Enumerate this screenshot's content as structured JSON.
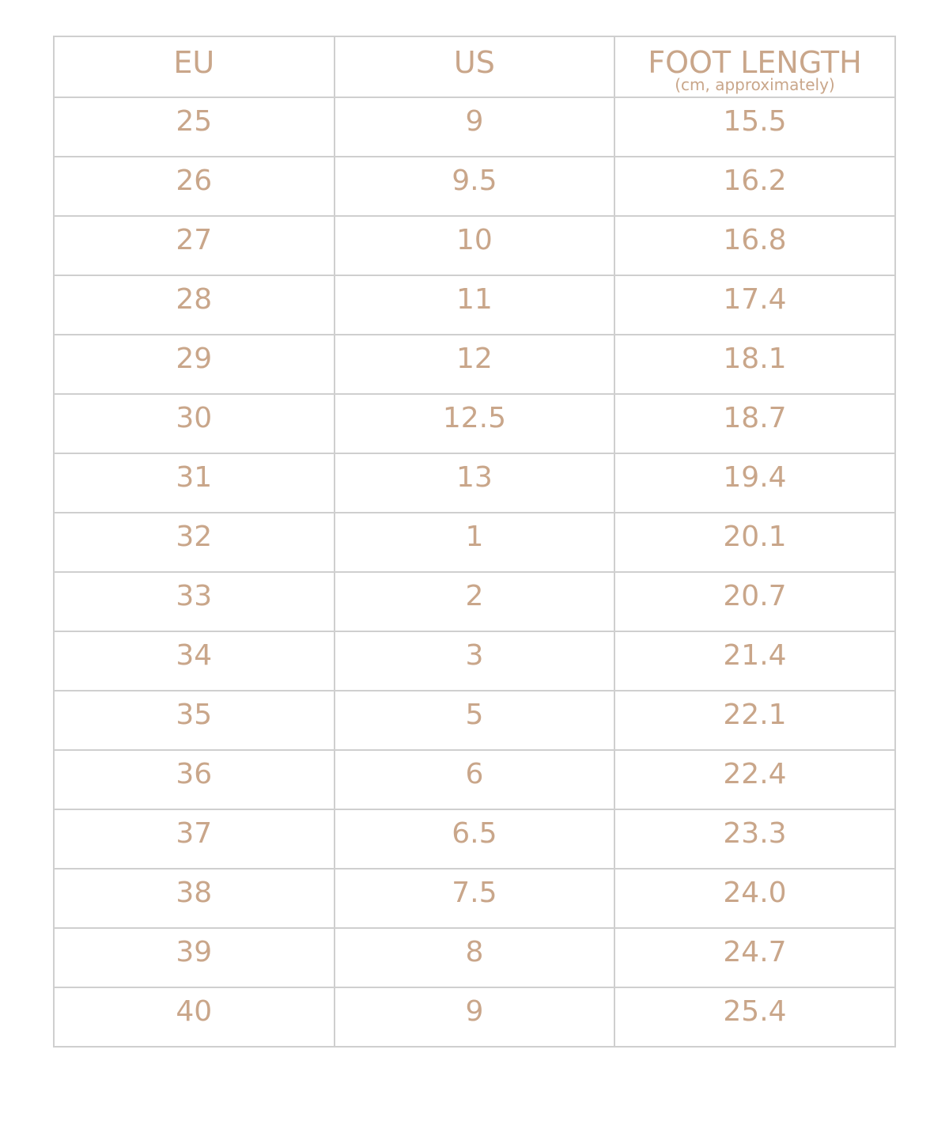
{
  "header": {
    "eu": "EU",
    "us": "US",
    "foot_length": "FOOT LENGTH",
    "foot_length_sub": "(cm, approximately)"
  },
  "text_color": "#c9a68a",
  "rows": [
    [
      "25",
      "9",
      "15.5"
    ],
    [
      "26",
      "9.5",
      "16.2"
    ],
    [
      "27",
      "10",
      "16.8"
    ],
    [
      "28",
      "11",
      "17.4"
    ],
    [
      "29",
      "12",
      "18.1"
    ],
    [
      "30",
      "12.5",
      "18.7"
    ],
    [
      "31",
      "13",
      "19.4"
    ],
    [
      "32",
      "1",
      "20.1"
    ],
    [
      "33",
      "2",
      "20.7"
    ],
    [
      "34",
      "3",
      "21.4"
    ],
    [
      "35",
      "5",
      "22.1"
    ],
    [
      "36",
      "6",
      "22.4"
    ],
    [
      "37",
      "6.5",
      "23.3"
    ],
    [
      "38",
      "7.5",
      "24.0"
    ],
    [
      "39",
      "8",
      "24.7"
    ],
    [
      "40",
      "9",
      "25.4"
    ]
  ]
}
